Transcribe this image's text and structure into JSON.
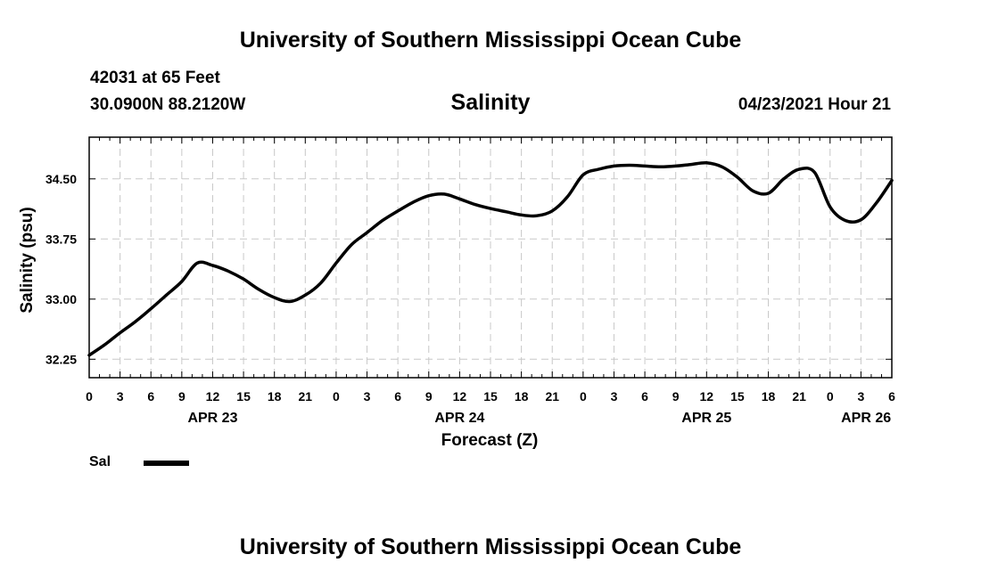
{
  "header": {
    "title": "University of Southern Mississippi Ocean Cube",
    "station": "42031 at 65 Feet",
    "coords": "30.0900N  88.2120W",
    "variable": "Salinity",
    "datetime": "04/23/2021 Hour 21"
  },
  "footer": {
    "title": "University of Southern Mississippi Ocean Cube"
  },
  "legend": {
    "label": "Sal",
    "color": "#000000"
  },
  "chart_data": {
    "type": "line",
    "title": "Salinity",
    "xlabel": "Forecast (Z)",
    "ylabel": "Salinity (psu)",
    "xlim": [
      0,
      78
    ],
    "ylim": [
      32.02,
      35.02
    ],
    "x_tick_values": [
      0,
      3,
      6,
      9,
      12,
      15,
      18,
      21,
      24,
      27,
      30,
      33,
      36,
      39,
      42,
      45,
      48,
      51,
      54,
      57,
      60,
      63,
      66,
      69,
      72,
      75,
      78
    ],
    "x_tick_labels": [
      "0",
      "3",
      "6",
      "9",
      "12",
      "15",
      "18",
      "21",
      "0",
      "3",
      "6",
      "9",
      "12",
      "15",
      "18",
      "21",
      "0",
      "3",
      "6",
      "9",
      "12",
      "15",
      "18",
      "21",
      "0",
      "3",
      "6"
    ],
    "day_labels": [
      {
        "x": 12,
        "label": "APR 23"
      },
      {
        "x": 36,
        "label": "APR 24"
      },
      {
        "x": 60,
        "label": "APR 25"
      },
      {
        "x": 75.5,
        "label": "APR 26"
      }
    ],
    "y_ticks": [
      "32.25",
      "33.00",
      "33.75",
      "34.50"
    ],
    "grid": true,
    "series": [
      {
        "name": "Sal",
        "x": [
          0,
          1.5,
          3,
          4.5,
          6,
          7.5,
          9,
          10.5,
          12,
          13.5,
          15,
          16.5,
          18,
          19.5,
          21,
          22.5,
          24,
          25.5,
          27,
          28.5,
          30,
          31.5,
          33,
          34.5,
          36,
          37.5,
          39,
          40.5,
          42,
          43.5,
          45,
          46.5,
          48,
          49.5,
          51,
          52.5,
          54,
          55.5,
          57,
          58.5,
          60,
          61.5,
          63,
          64.5,
          66,
          67.5,
          69,
          70.5,
          72,
          73.5,
          75,
          76.5,
          78
        ],
        "values": [
          32.3,
          32.43,
          32.58,
          32.72,
          32.88,
          33.05,
          33.22,
          33.45,
          33.42,
          33.35,
          33.25,
          33.12,
          33.02,
          32.97,
          33.05,
          33.2,
          33.45,
          33.68,
          33.83,
          33.98,
          34.1,
          34.21,
          34.29,
          34.31,
          34.25,
          34.18,
          34.13,
          34.09,
          34.05,
          34.04,
          34.1,
          34.28,
          34.55,
          34.62,
          34.66,
          34.67,
          34.66,
          34.65,
          34.66,
          34.68,
          34.7,
          34.65,
          34.52,
          34.35,
          34.32,
          34.5,
          34.62,
          34.58,
          34.15,
          33.98,
          33.99,
          34.2,
          34.48
        ]
      }
    ]
  }
}
